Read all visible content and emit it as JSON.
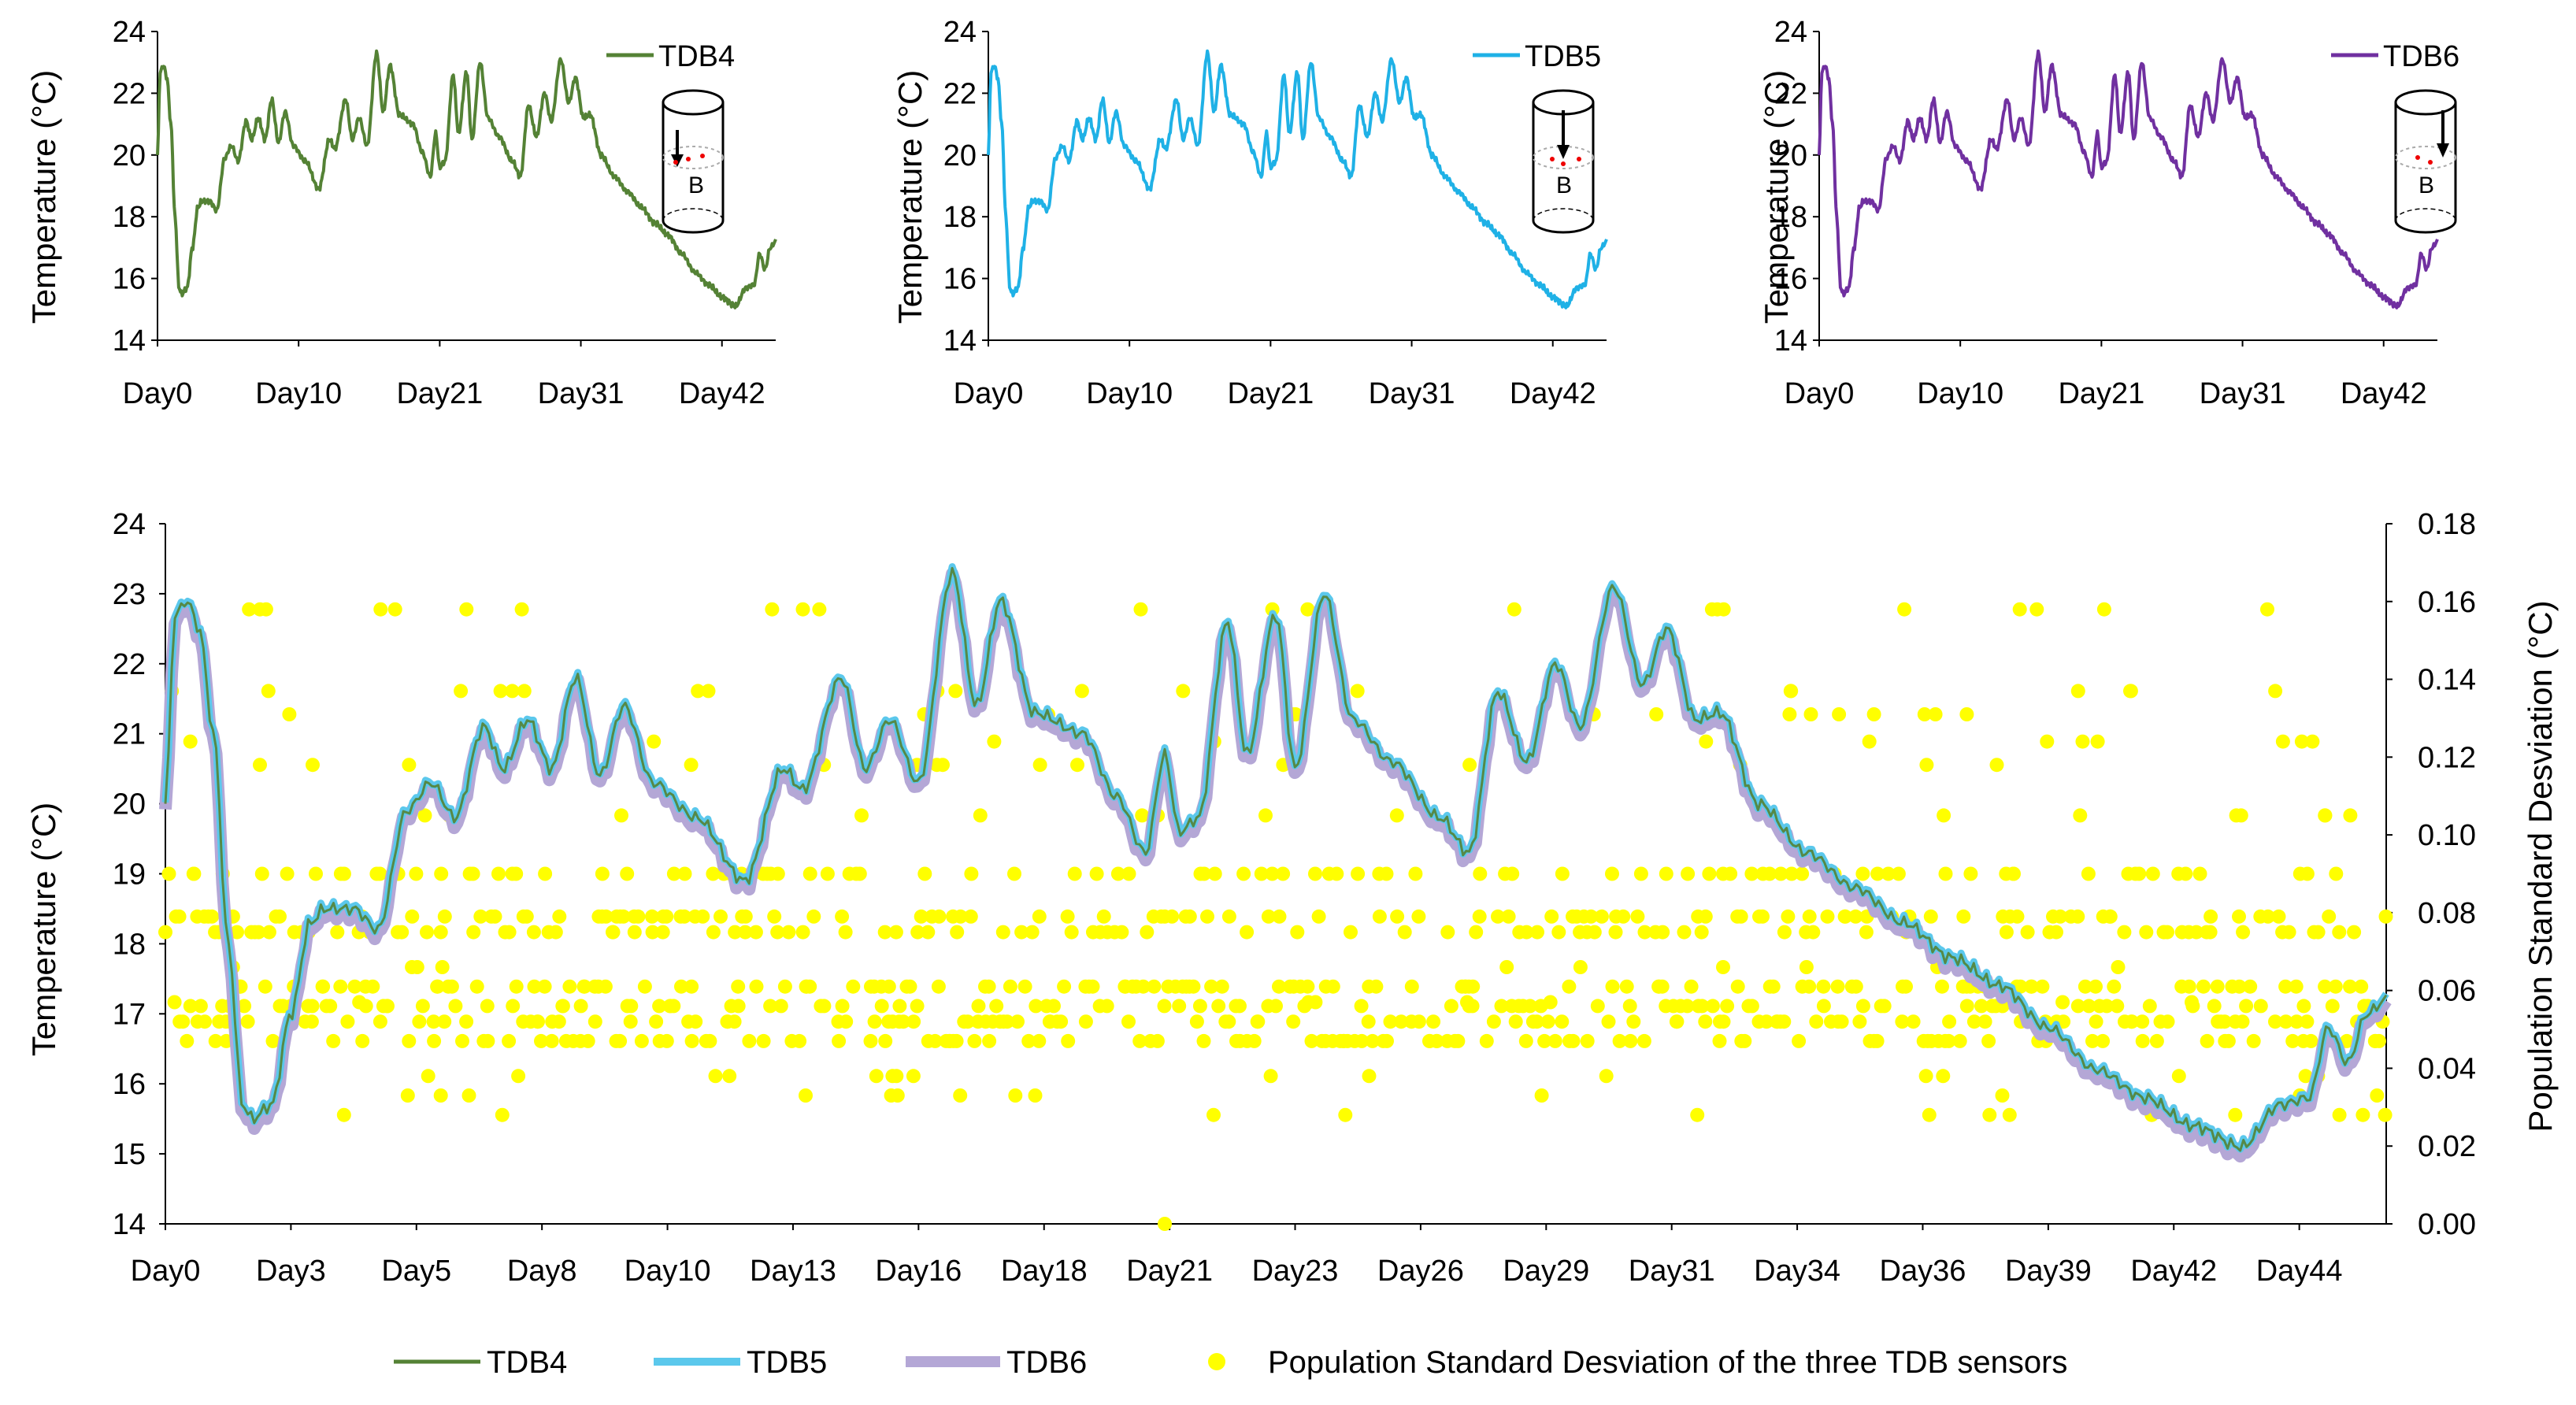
{
  "chart_data": [
    {
      "type": "line",
      "title": "",
      "xlabel": "",
      "ylabel": "Temperature (°C)",
      "ylim": [
        14,
        24
      ],
      "yticks": [
        14,
        16,
        18,
        20,
        22,
        24
      ],
      "xlim": [
        0,
        46
      ],
      "xticks": [
        {
          "day": 0,
          "label": "Day0"
        },
        {
          "day": 10.5,
          "label": "Day10"
        },
        {
          "day": 21,
          "label": "Day21"
        },
        {
          "day": 31.5,
          "label": "Day31"
        },
        {
          "day": 42,
          "label": "Day42"
        }
      ],
      "legend": "TDB4",
      "legend_position": "top-right",
      "inset_label": "B",
      "color": "#548235",
      "series": [
        {
          "name": "TDB4",
          "values": []
        }
      ]
    },
    {
      "type": "line",
      "title": "",
      "xlabel": "",
      "ylabel": "Temperature (°C)",
      "ylim": [
        14,
        24
      ],
      "yticks": [
        14,
        16,
        18,
        20,
        22,
        24
      ],
      "xlim": [
        0,
        46
      ],
      "xticks": [
        {
          "day": 0,
          "label": "Day0"
        },
        {
          "day": 10.5,
          "label": "Day10"
        },
        {
          "day": 21,
          "label": "Day21"
        },
        {
          "day": 31.5,
          "label": "Day31"
        },
        {
          "day": 42,
          "label": "Day42"
        }
      ],
      "legend": "TDB5",
      "legend_position": "top-right",
      "inset_label": "B",
      "color": "#1FB1E6",
      "series": [
        {
          "name": "TDB5",
          "values": []
        }
      ]
    },
    {
      "type": "line",
      "title": "",
      "xlabel": "",
      "ylabel": "Temperature (°C)",
      "ylim": [
        14,
        24
      ],
      "yticks": [
        14,
        16,
        18,
        20,
        22,
        24
      ],
      "xlim": [
        0,
        46
      ],
      "xticks": [
        {
          "day": 0,
          "label": "Day0"
        },
        {
          "day": 10.5,
          "label": "Day10"
        },
        {
          "day": 21,
          "label": "Day21"
        },
        {
          "day": 31.5,
          "label": "Day31"
        },
        {
          "day": 42,
          "label": "Day42"
        }
      ],
      "legend": "TDB6",
      "legend_position": "top-right",
      "inset_label": "B",
      "color": "#7030A0",
      "series": [
        {
          "name": "TDB6",
          "values": []
        }
      ]
    },
    {
      "type": "line",
      "title": "",
      "xlabel": "",
      "ylabel": "Temperature (°C)",
      "y2label": "Population Standard Desviation (°C)",
      "ylim": [
        14,
        24
      ],
      "yticks": [
        14,
        15,
        16,
        17,
        18,
        19,
        20,
        21,
        22,
        23,
        24
      ],
      "y2lim": [
        0,
        0.18
      ],
      "y2ticks": [
        "0.00",
        "0.02",
        "0.04",
        "0.06",
        "0.08",
        "0.10",
        "0.12",
        "0.14",
        "0.16",
        "0.18"
      ],
      "xlim": [
        0,
        46
      ],
      "xticks": [
        {
          "day": 0,
          "label": "Day0"
        },
        {
          "day": 2.6,
          "label": "Day3"
        },
        {
          "day": 5.2,
          "label": "Day5"
        },
        {
          "day": 7.8,
          "label": "Day8"
        },
        {
          "day": 10.4,
          "label": "Day10"
        },
        {
          "day": 13.0,
          "label": "Day13"
        },
        {
          "day": 15.6,
          "label": "Day16"
        },
        {
          "day": 18.2,
          "label": "Day18"
        },
        {
          "day": 20.8,
          "label": "Day21"
        },
        {
          "day": 23.4,
          "label": "Day23"
        },
        {
          "day": 26.0,
          "label": "Day26"
        },
        {
          "day": 28.6,
          "label": "Day29"
        },
        {
          "day": 31.2,
          "label": "Day31"
        },
        {
          "day": 33.8,
          "label": "Day34"
        },
        {
          "day": 36.4,
          "label": "Day36"
        },
        {
          "day": 39.0,
          "label": "Day39"
        },
        {
          "day": 41.6,
          "label": "Day42"
        },
        {
          "day": 44.2,
          "label": "Day44"
        }
      ],
      "legend_position": "bottom",
      "series": [
        {
          "name": "TDB4",
          "color": "#548235",
          "axis": "left"
        },
        {
          "name": "TDB5",
          "color": "#5BC8EC",
          "axis": "left"
        },
        {
          "name": "TDB6",
          "color": "#B4A7D6",
          "axis": "left"
        },
        {
          "name": "Population Standard Desviation of the three TDB sensors",
          "color": "#FFFF00",
          "axis": "right",
          "kind": "scatter",
          "levels": [
            0.047,
            0.052,
            0.056,
            0.061,
            0.075,
            0.079,
            0.09
          ],
          "sparse_levels": [
            0.028,
            0.033,
            0.038,
            0.057,
            0.066,
            0.105,
            0.118,
            0.124,
            0.131,
            0.137,
            0.158,
            0.0
          ]
        }
      ]
    }
  ],
  "temperature_keypoints": [
    [
      0,
      20.0
    ],
    [
      0.2,
      22.7
    ],
    [
      0.45,
      22.9
    ],
    [
      0.7,
      22.5
    ],
    [
      1.0,
      21.0
    ],
    [
      1.3,
      18.0
    ],
    [
      1.6,
      15.7
    ],
    [
      1.8,
      15.5
    ],
    [
      2.2,
      15.7
    ],
    [
      2.6,
      17.0
    ],
    [
      3.0,
      18.3
    ],
    [
      3.3,
      18.5
    ],
    [
      3.9,
      18.5
    ],
    [
      4.4,
      18.2
    ],
    [
      5.0,
      19.9
    ],
    [
      5.5,
      20.3
    ],
    [
      6.0,
      19.8
    ],
    [
      6.6,
      21.1
    ],
    [
      7.0,
      20.5
    ],
    [
      7.5,
      21.2
    ],
    [
      8.0,
      20.5
    ],
    [
      8.5,
      21.8
    ],
    [
      9.0,
      20.4
    ],
    [
      9.5,
      21.4
    ],
    [
      10.1,
      20.3
    ],
    [
      11.0,
      19.8
    ],
    [
      12.0,
      18.9
    ],
    [
      12.8,
      20.5
    ],
    [
      13.2,
      20.2
    ],
    [
      14.0,
      21.8
    ],
    [
      14.5,
      20.5
    ],
    [
      15.0,
      21.2
    ],
    [
      15.6,
      20.3
    ],
    [
      16.3,
      23.3
    ],
    [
      16.8,
      21.4
    ],
    [
      17.3,
      22.9
    ],
    [
      18.0,
      21.3
    ],
    [
      19.0,
      21.0
    ],
    [
      19.7,
      20.1
    ],
    [
      20.3,
      19.3
    ],
    [
      20.7,
      20.7
    ],
    [
      21.0,
      19.6
    ],
    [
      21.4,
      19.8
    ],
    [
      22.0,
      22.6
    ],
    [
      22.4,
      20.7
    ],
    [
      23.0,
      22.7
    ],
    [
      23.4,
      20.5
    ],
    [
      24.0,
      23.0
    ],
    [
      24.6,
      21.2
    ],
    [
      25.4,
      20.6
    ],
    [
      26.4,
      19.8
    ],
    [
      27.0,
      19.3
    ],
    [
      27.6,
      21.6
    ],
    [
      28.2,
      20.6
    ],
    [
      28.8,
      22.0
    ],
    [
      29.3,
      21.1
    ],
    [
      30.0,
      23.1
    ],
    [
      30.6,
      21.7
    ],
    [
      31.1,
      22.5
    ],
    [
      31.7,
      21.2
    ],
    [
      32.2,
      21.3
    ],
    [
      33.0,
      20.0
    ],
    [
      34.0,
      19.3
    ],
    [
      35.0,
      18.8
    ],
    [
      36.0,
      18.3
    ],
    [
      37.0,
      17.8
    ],
    [
      38.0,
      17.4
    ],
    [
      39.0,
      16.8
    ],
    [
      40.0,
      16.2
    ],
    [
      41.0,
      15.8
    ],
    [
      42.0,
      15.4
    ],
    [
      43.0,
      15.1
    ],
    [
      43.8,
      15.7
    ],
    [
      44.4,
      15.8
    ],
    [
      44.8,
      16.8
    ],
    [
      45.2,
      16.3
    ],
    [
      45.6,
      17.0
    ],
    [
      46.0,
      17.2
    ]
  ],
  "legend": {
    "tdb4": "TDB4",
    "tdb5": "TDB5",
    "tdb6": "TDB6",
    "std": "Population Standard Desviation of the three TDB sensors"
  }
}
